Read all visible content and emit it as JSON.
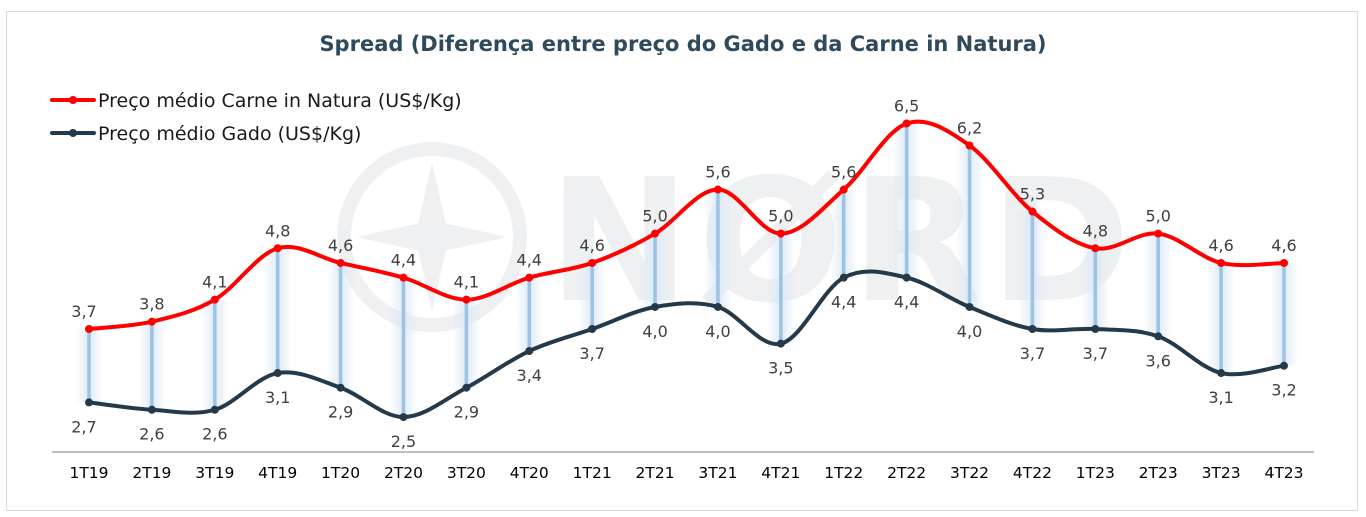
{
  "chart_data": {
    "type": "line",
    "title": "Spread (Diferença entre preço do Gado e da Carne in Natura)",
    "categories": [
      "1T19",
      "2T19",
      "3T19",
      "4T19",
      "1T20",
      "2T20",
      "3T20",
      "4T20",
      "1T21",
      "2T21",
      "3T21",
      "4T21",
      "1T22",
      "2T22",
      "3T22",
      "4T22",
      "1T23",
      "2T23",
      "3T23",
      "4T23"
    ],
    "series": [
      {
        "name": "Preço médio Carne in Natura (US$/Kg)",
        "color": "#ff0000",
        "values": [
          3.7,
          3.8,
          4.1,
          4.8,
          4.6,
          4.4,
          4.1,
          4.4,
          4.6,
          5.0,
          5.6,
          5.0,
          5.6,
          6.5,
          6.2,
          5.3,
          4.8,
          5.0,
          4.6,
          4.6
        ],
        "labels": [
          "3,7",
          "3,8",
          "4,1",
          "4,8",
          "4,6",
          "4,4",
          "4,1",
          "4,4",
          "4,6",
          "5,0",
          "5,6",
          "5,0",
          "5,6",
          "6,5",
          "6,2",
          "5,3",
          "4,8",
          "5,0",
          "4,6",
          "4,6"
        ]
      },
      {
        "name": "Preço médio Gado (US$/Kg)",
        "color": "#243a4b",
        "values": [
          2.7,
          2.6,
          2.6,
          3.1,
          2.9,
          2.5,
          2.9,
          3.4,
          3.7,
          4.0,
          4.0,
          3.5,
          4.4,
          4.4,
          4.0,
          3.7,
          3.7,
          3.6,
          3.1,
          3.2
        ],
        "labels": [
          "2,7",
          "2,6",
          "2,6",
          "3,1",
          "2,9",
          "2,5",
          "2,9",
          "3,4",
          "3,7",
          "4,0",
          "4,0",
          "3,5",
          "4,4",
          "4,4",
          "4,0",
          "3,7",
          "3,7",
          "3,6",
          "3,1",
          "3,2"
        ]
      }
    ],
    "spread_bar_color": "#9cc3e6",
    "legend_position": "top-left",
    "grid": false,
    "watermark": "NØRD"
  }
}
